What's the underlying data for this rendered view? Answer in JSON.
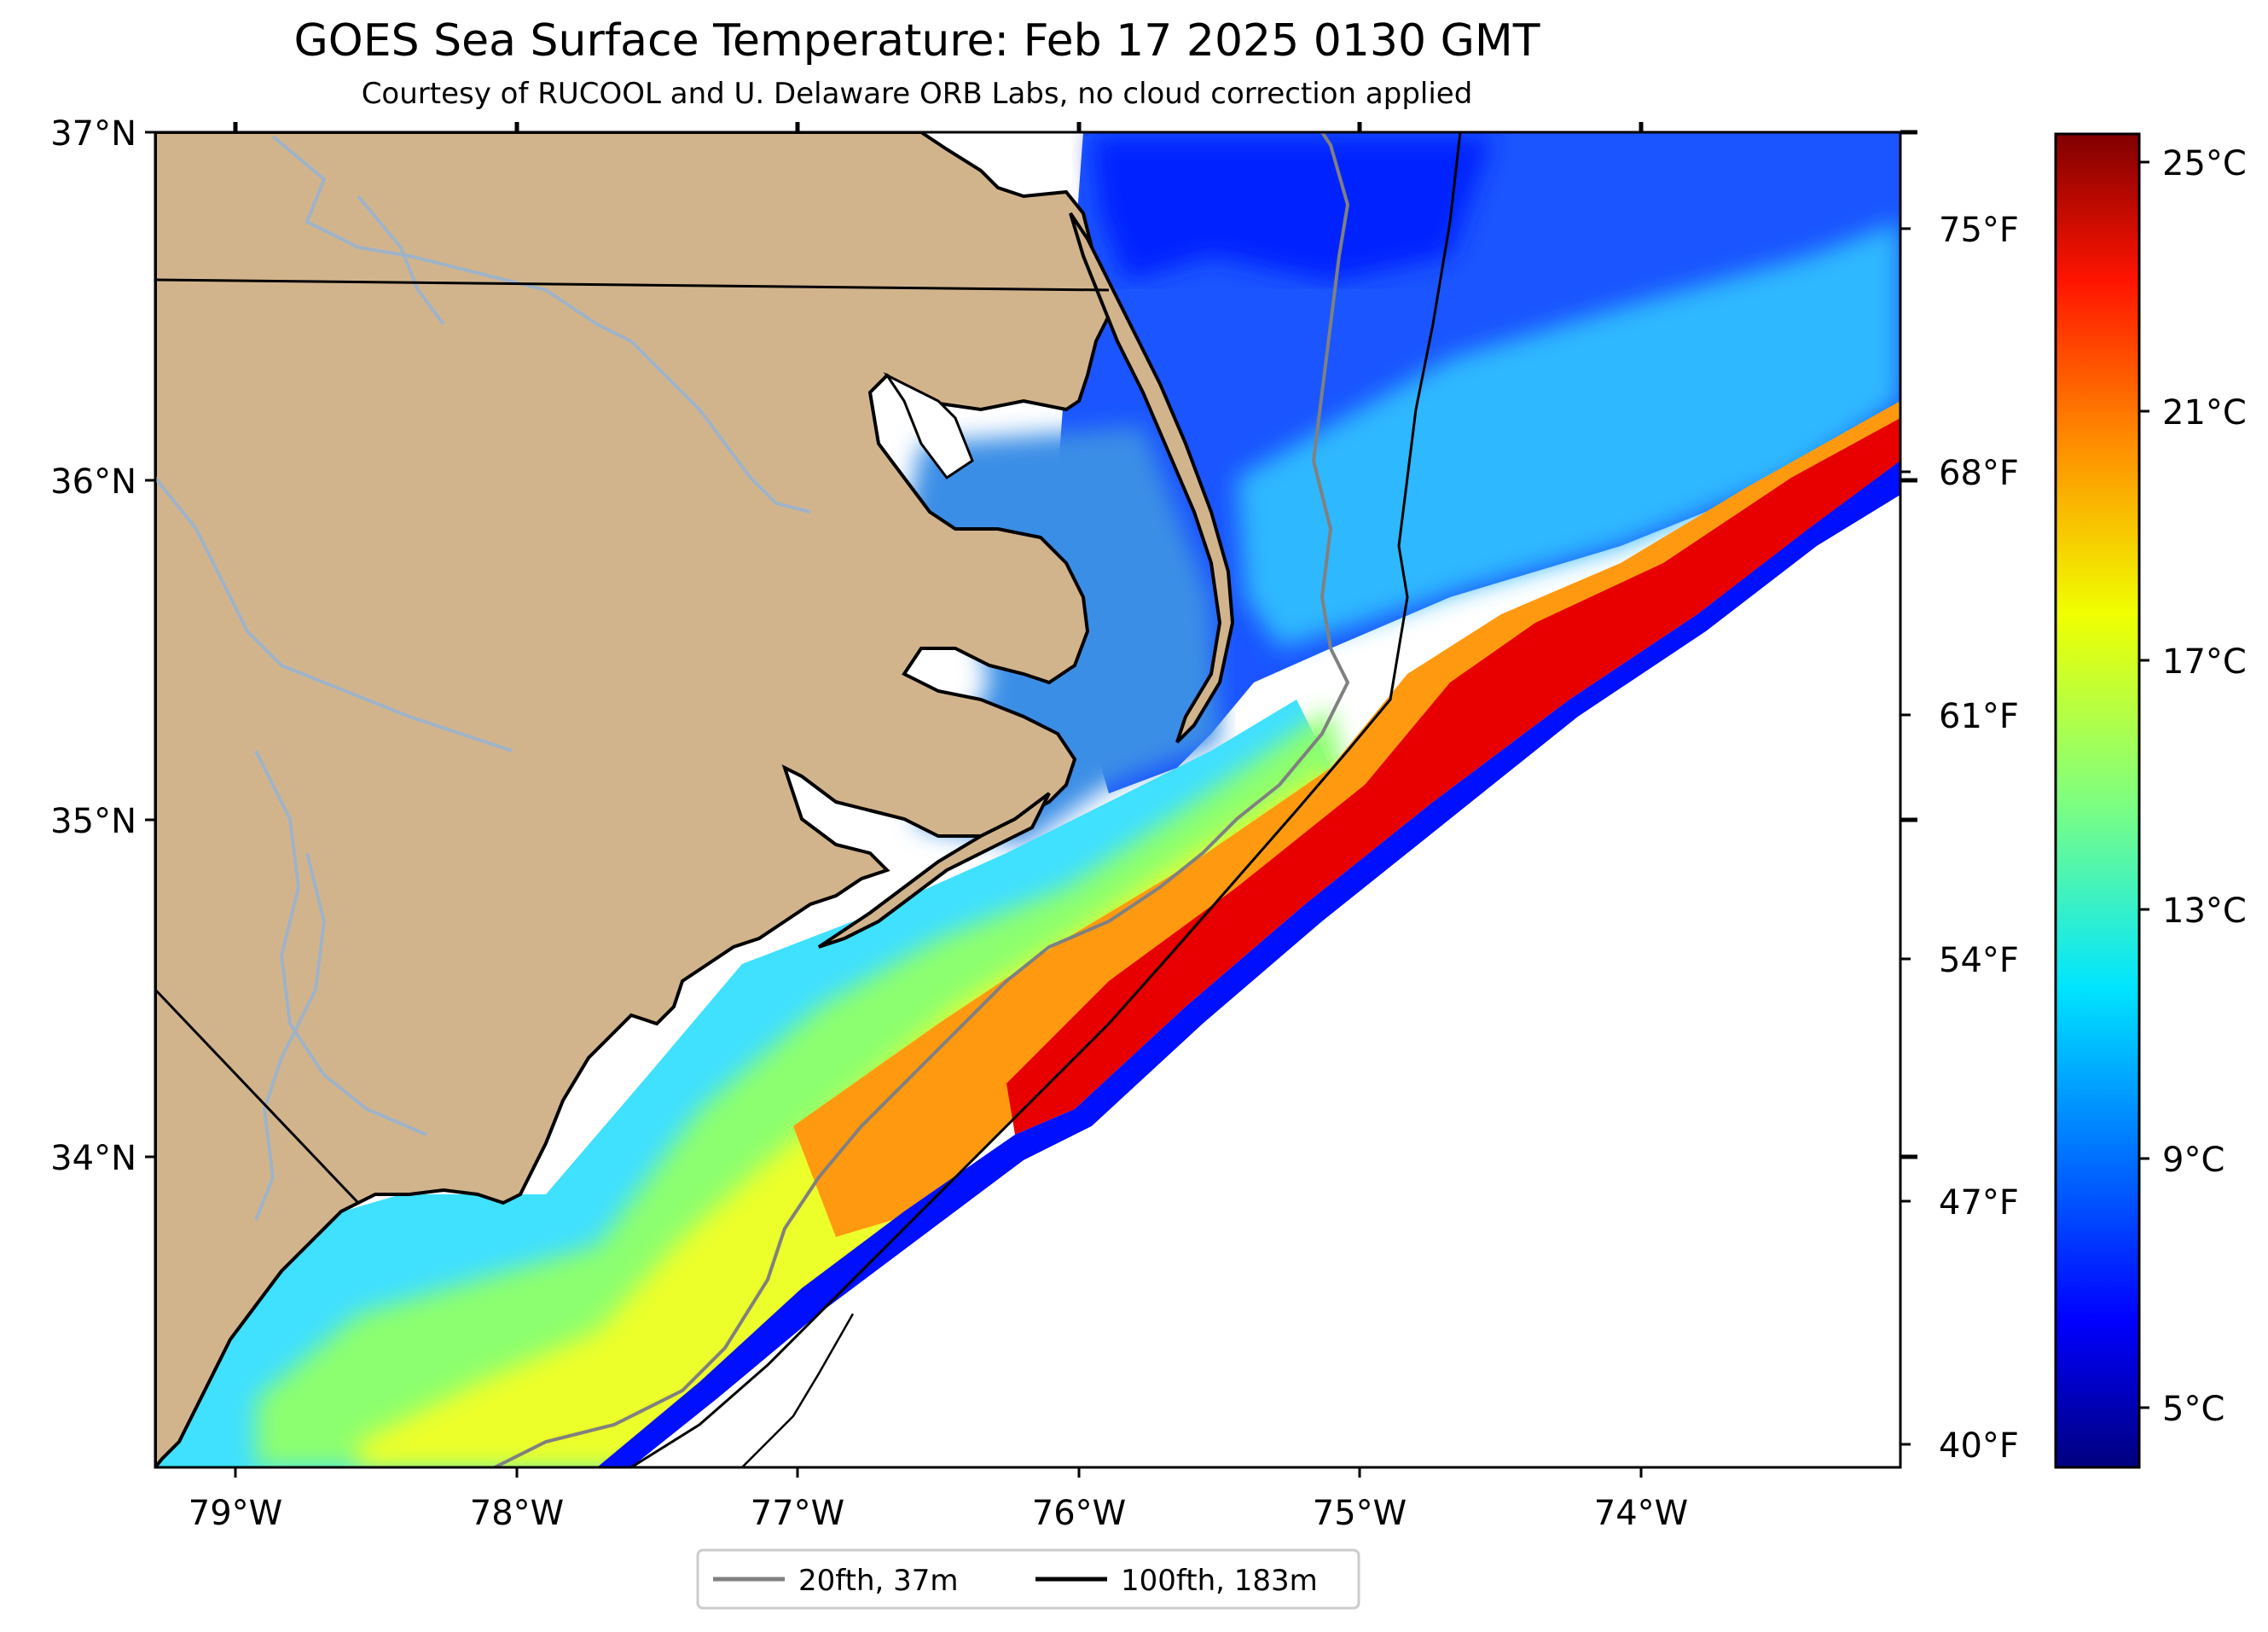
{
  "title": "GOES Sea Surface Temperature: Feb 17 2025 0130 GMT",
  "subtitle": "Courtesy of RUCOOL and U. Delaware ORB Labs, no cloud correction applied",
  "map": {
    "lon_range": [
      -79.28,
      -73.08
    ],
    "lat_range": [
      33.1,
      37.0
    ],
    "land_color": "#d2b48c",
    "lat_labels": [
      "37°N",
      "36°N",
      "35°N",
      "34°N"
    ],
    "lon_labels": [
      "79°W",
      "78°W",
      "77°W",
      "76°W",
      "75°W",
      "74°W"
    ]
  },
  "colorbar": {
    "colormap": "jet",
    "celsius_labels": [
      "25°C",
      "21°C",
      "17°C",
      "13°C",
      "9°C",
      "5°C"
    ],
    "fahrenheit_labels": [
      "75°F",
      "68°F",
      "61°F",
      "54°F",
      "47°F",
      "40°F"
    ],
    "range_celsius": [
      3.5,
      25.8
    ]
  },
  "legend": {
    "items": [
      {
        "label": "20fth, 37m",
        "color": "#808080"
      },
      {
        "label": "100fth, 183m",
        "color": "#000000"
      }
    ]
  }
}
